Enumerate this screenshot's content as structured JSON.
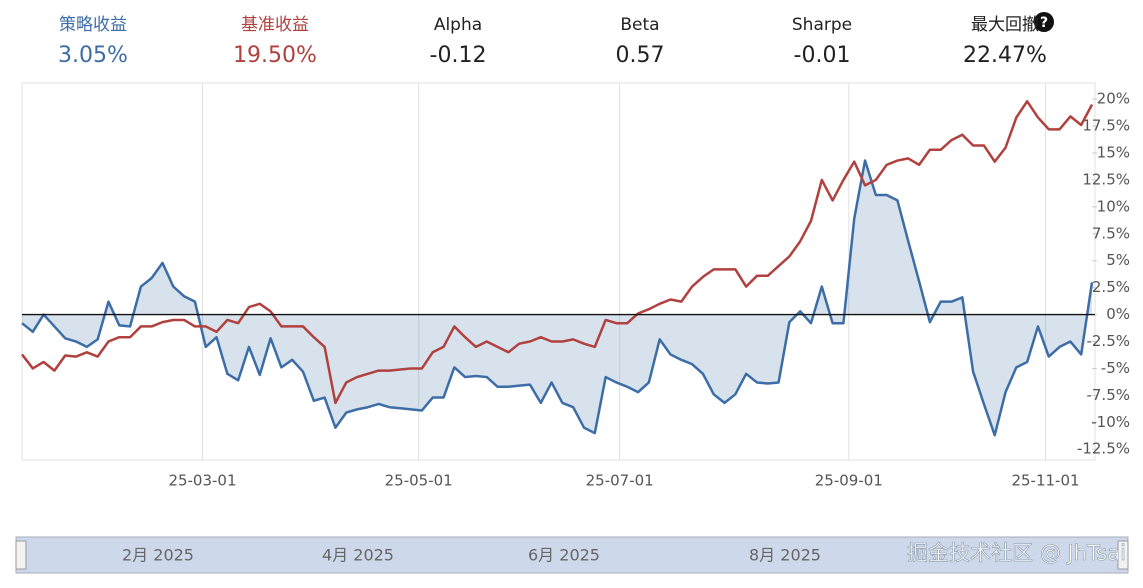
{
  "stats": [
    {
      "label": "策略收益",
      "value": "3.05%"
    },
    {
      "label": "基准收益",
      "value": "19.50%"
    },
    {
      "label": "Alpha",
      "value": "-0.12"
    },
    {
      "label": "Beta",
      "value": "0.57"
    },
    {
      "label": "Sharpe",
      "value": "-0.01"
    },
    {
      "label": "最大回撤",
      "value": "22.47%"
    }
  ],
  "help_icon": "?",
  "chart_data": {
    "type": "line",
    "xlim": [
      0,
      99
    ],
    "xticks": [
      {
        "value": 16.7,
        "label": "25-03-01"
      },
      {
        "value": 36.7,
        "label": "25-05-01"
      },
      {
        "value": 55.3,
        "label": "25-07-01"
      },
      {
        "value": 76.5,
        "label": "25-09-01"
      },
      {
        "value": 94.7,
        "label": "25-11-01"
      }
    ],
    "ylim": [
      -13.5,
      21.5
    ],
    "yticks": [
      {
        "value": 20,
        "label": "20%"
      },
      {
        "value": 17.5,
        "label": "17.5%"
      },
      {
        "value": 15,
        "label": "15%"
      },
      {
        "value": 12.5,
        "label": "12.5%"
      },
      {
        "value": 10,
        "label": "10%"
      },
      {
        "value": 7.5,
        "label": "7.5%"
      },
      {
        "value": 5,
        "label": "5%"
      },
      {
        "value": 2.5,
        "label": "2.5%"
      },
      {
        "value": 0,
        "label": "0%"
      },
      {
        "value": -2.5,
        "label": "-2.5%"
      },
      {
        "value": -5,
        "label": "-5%"
      },
      {
        "value": -7.5,
        "label": "-7.5%"
      },
      {
        "value": -10,
        "label": "-10%"
      },
      {
        "value": -12.5,
        "label": "-12.5%"
      }
    ],
    "series": [
      {
        "color": "#3d6da6",
        "area": true,
        "values": [
          -0.8,
          -1.6,
          0,
          -1.1,
          -2.2,
          -2.5,
          -3.0,
          -2.3,
          1.2,
          -1.0,
          -1.1,
          2.6,
          3.4,
          4.8,
          2.6,
          1.7,
          1.2,
          -3.0,
          -2.1,
          -5.5,
          -6.1,
          -3.0,
          -5.6,
          -2.2,
          -4.9,
          -4.2,
          -5.3,
          -8.0,
          -7.7,
          -10.5,
          -9.1,
          -8.8,
          -8.6,
          -8.3,
          -8.6,
          -8.7,
          -8.8,
          -8.9,
          -7.7,
          -7.7,
          -4.9,
          -5.8,
          -5.7,
          -5.8,
          -6.7,
          -6.7,
          -6.6,
          -6.5,
          -8.2,
          -6.3,
          -8.2,
          -8.6,
          -10.5,
          -11.0,
          -5.8,
          -6.3,
          -6.7,
          -7.2,
          -6.3,
          -2.3,
          -3.7,
          -4.2,
          -4.6,
          -5.5,
          -7.4,
          -8.2,
          -7.4,
          -5.5,
          -6.3,
          -6.4,
          -6.3,
          -0.7,
          0.3,
          -0.8,
          2.6,
          -0.8,
          -0.8,
          8.9,
          14.3,
          11.1,
          11.1,
          10.6,
          6.8,
          3.1,
          -0.7,
          1.2,
          1.2,
          1.6,
          -5.3,
          -8.3,
          -11.2,
          -7.2,
          -4.9,
          -4.4,
          -1.1,
          -3.9,
          -3.0,
          -2.5,
          -3.7,
          3.0
        ]
      },
      {
        "color": "#b0413e",
        "area": false,
        "values": [
          -3.7,
          -5.0,
          -4.4,
          -5.2,
          -3.8,
          -3.9,
          -3.5,
          -3.9,
          -2.5,
          -2.1,
          -2.1,
          -1.1,
          -1.1,
          -0.7,
          -0.5,
          -0.5,
          -1.1,
          -1.1,
          -1.6,
          -0.5,
          -0.8,
          0.7,
          1.0,
          0.3,
          -1.1,
          -1.1,
          -1.1,
          -2.1,
          -3.0,
          -8.2,
          -6.3,
          -5.8,
          -5.5,
          -5.2,
          -5.2,
          -5.1,
          -5.0,
          -5.0,
          -3.5,
          -3.0,
          -1.1,
          -2.1,
          -3.0,
          -2.5,
          -3.0,
          -3.5,
          -2.7,
          -2.5,
          -2.1,
          -2.5,
          -2.5,
          -2.3,
          -2.7,
          -3.0,
          -0.5,
          -0.8,
          -0.8,
          0.1,
          0.5,
          1.0,
          1.4,
          1.2,
          2.6,
          3.5,
          4.2,
          4.2,
          4.2,
          2.6,
          3.6,
          3.6,
          4.5,
          5.4,
          6.8,
          8.7,
          12.5,
          10.6,
          12.5,
          14.2,
          12.0,
          12.5,
          13.9,
          14.3,
          14.5,
          13.9,
          15.3,
          15.3,
          16.2,
          16.7,
          15.7,
          15.7,
          14.2,
          15.5,
          18.3,
          19.8,
          18.3,
          17.2,
          17.2,
          18.4,
          17.6,
          19.5
        ]
      }
    ]
  },
  "navigator": {
    "labels": [
      "2月 2025",
      "4月 2025",
      "6月 2025",
      "8月 2025"
    ]
  },
  "watermark": "掘金技术社区 @ JhTsai"
}
